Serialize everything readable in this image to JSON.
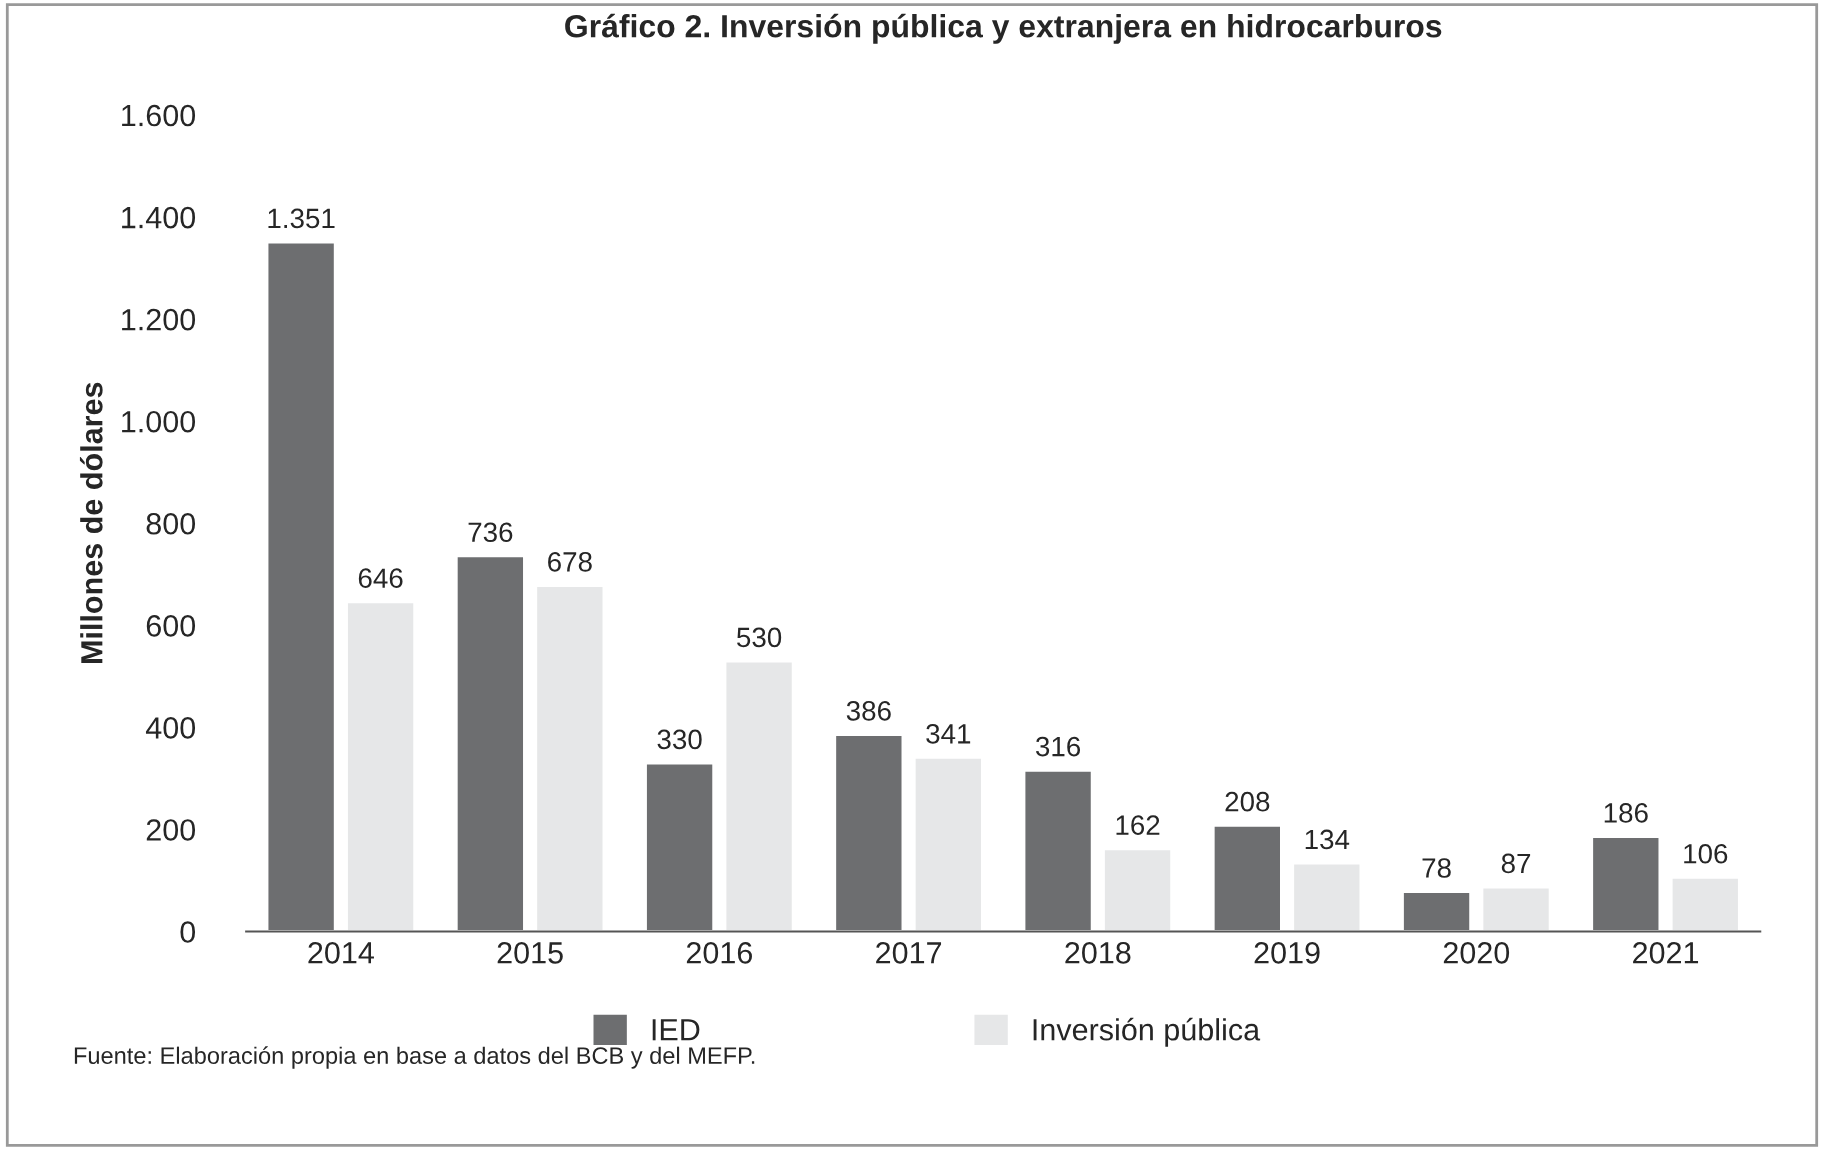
{
  "chart_data": {
    "type": "bar",
    "title": "Gráfico 2. Inversión pública y extranjera en hidrocarburos",
    "ylabel": "Millones de dólares",
    "categories": [
      "2014",
      "2015",
      "2016",
      "2017",
      "2018",
      "2019",
      "2020",
      "2021"
    ],
    "series": [
      {
        "name": "IED",
        "color": "#6d6e70",
        "values": [
          1351,
          736,
          330,
          386,
          316,
          208,
          78,
          186
        ],
        "value_labels": [
          "1.351",
          "736",
          "330",
          "386",
          "316",
          "208",
          "78",
          "186"
        ]
      },
      {
        "name": "Inversión pública",
        "color": "#e6e7e8",
        "values": [
          646,
          678,
          530,
          341,
          162,
          134,
          87,
          106
        ],
        "value_labels": [
          "646",
          "678",
          "530",
          "341",
          "162",
          "134",
          "87",
          "106"
        ]
      }
    ],
    "ylim": [
      0,
      1600
    ],
    "yticks": [
      0,
      200,
      400,
      600,
      800,
      {
        "value": 1000,
        "label": "1.000"
      },
      {
        "value": 1200,
        "label": "1.200"
      },
      {
        "value": 1400,
        "label": "1.400"
      },
      {
        "value": 1600,
        "label": "1.600"
      }
    ],
    "grid": false,
    "legend": "bottom",
    "annotations": [
      "Fuente: Elaboración propia en base a datos del BCB y del MEFP."
    ]
  }
}
